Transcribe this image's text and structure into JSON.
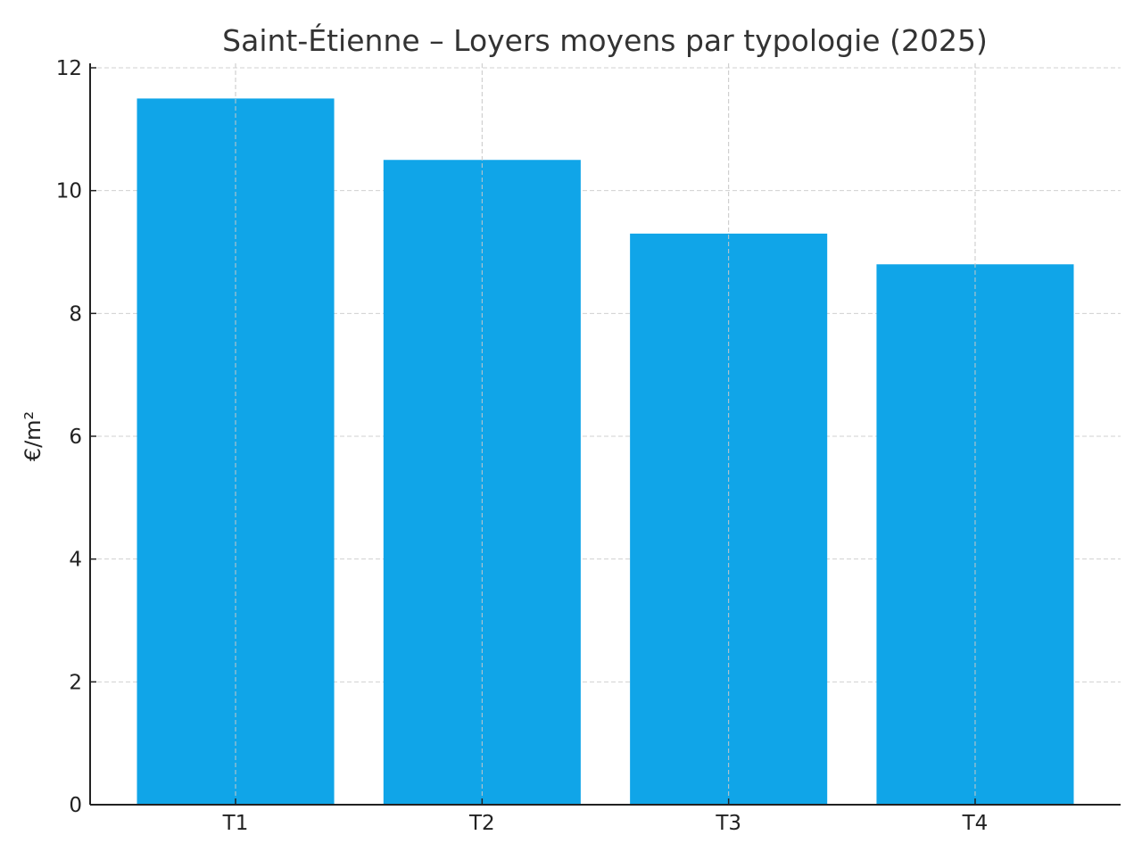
{
  "chart_data": {
    "type": "bar",
    "title": "Saint-Étienne – Loyers moyens par typologie (2025)",
    "xlabel": "",
    "ylabel": "€/m²",
    "categories": [
      "T1",
      "T2",
      "T3",
      "T4"
    ],
    "values": [
      11.5,
      10.5,
      9.3,
      8.8
    ],
    "ylim": [
      0,
      12
    ],
    "yticks": [
      "0",
      "2",
      "4",
      "6",
      "8",
      "10",
      "12"
    ],
    "grid": true,
    "bar_color": "#10a5e8"
  }
}
